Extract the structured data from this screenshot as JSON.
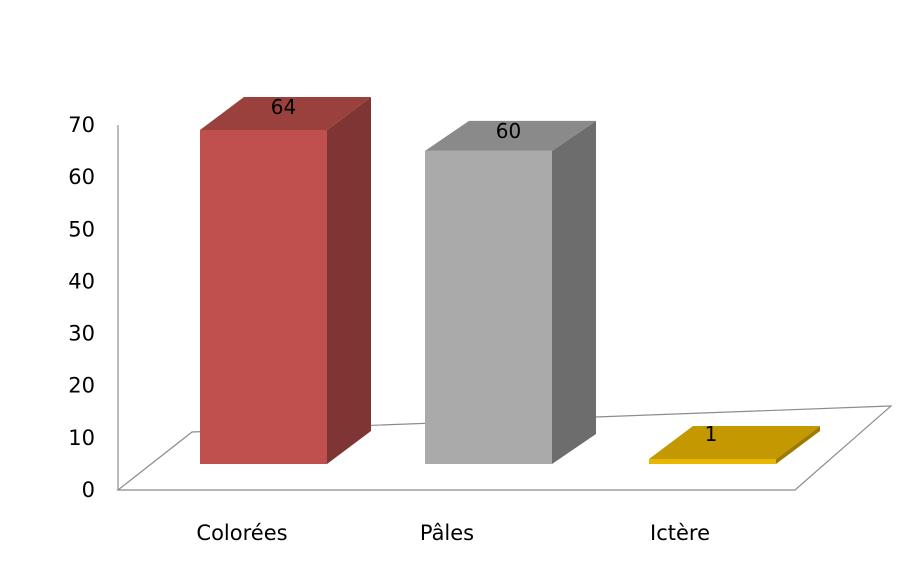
{
  "chart_data": {
    "type": "bar",
    "style": "3d-column",
    "categories": [
      "Colorées",
      "Pâles",
      "Ictère"
    ],
    "values": [
      64,
      60,
      1
    ],
    "data_labels": [
      "64",
      "60",
      "1"
    ],
    "title": "",
    "xlabel": "",
    "ylabel": "",
    "ylim": [
      0,
      70
    ],
    "yticks": [
      "0",
      "10",
      "20",
      "30",
      "40",
      "50",
      "60",
      "70"
    ],
    "grid": false,
    "legend": "none",
    "colors": [
      {
        "front": "#c0504d",
        "top": "#9a403d",
        "side": "#7f3533"
      },
      {
        "front": "#aaaaaa",
        "top": "#8a8a8a",
        "side": "#6d6d6d"
      },
      {
        "front": "#e8b800",
        "top": "#c49800",
        "side": "#9e7b00"
      }
    ],
    "axis_color": "#8c8c8c"
  }
}
